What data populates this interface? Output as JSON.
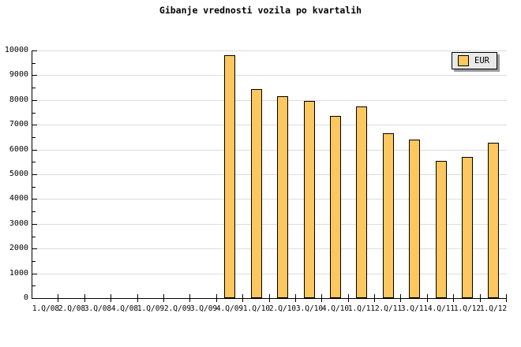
{
  "title": "Gibanje vrednosti vozila po kvartalih",
  "colors": {
    "bar_fill": "#FCC75E",
    "bar_border": "#000000",
    "gridline": "#DDDDDD",
    "axis": "#000000",
    "legend_background": "#E9E9E9",
    "legend_shadow": "#9C9C9C",
    "text": "#000000",
    "background": "#FFFFFF"
  },
  "legend": {
    "position": "top-right"
  },
  "chart_data": {
    "type": "bar",
    "title": "Gibanje vrednosti vozila po kvartalih",
    "xlabel": "",
    "ylabel": "",
    "categories": [
      "1.Q/08",
      "2.Q/08",
      "3.Q/08",
      "4.Q/08",
      "1.Q/09",
      "2.Q/09",
      "3.Q/09",
      "4.Q/09",
      "1.Q/10",
      "2.Q/10",
      "3.Q/10",
      "4.Q/10",
      "1.Q/11",
      "2.Q/11",
      "3.Q/11",
      "4.Q/11",
      "1.Q/12",
      "1.Q/12"
    ],
    "series": [
      {
        "name": "EUR",
        "values": [
          null,
          null,
          null,
          null,
          null,
          null,
          null,
          9800,
          8450,
          8150,
          7950,
          7350,
          7750,
          6650,
          6400,
          5550,
          5700,
          6280
        ]
      }
    ],
    "ylim": [
      0,
      10000
    ],
    "ytick_major": 1000,
    "ytick_minor": 500,
    "y_tick_labels": [
      "0",
      "1000",
      "2000",
      "3000",
      "4000",
      "5000",
      "6000",
      "7000",
      "8000",
      "9000",
      "10000"
    ],
    "grid": "horizontal",
    "legend_position": "top-right"
  }
}
